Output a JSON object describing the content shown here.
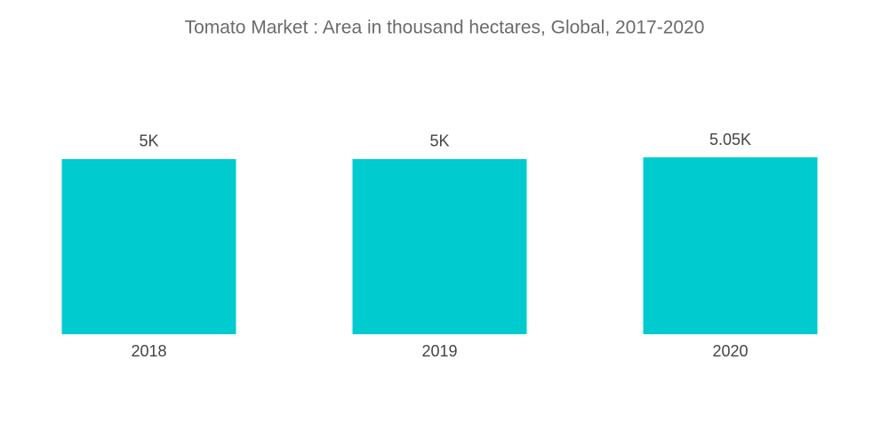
{
  "chart_data": {
    "type": "bar",
    "title": "Tomato Market : Area in thousand hectares, Global, 2017-2020",
    "categories": [
      "2018",
      "2019",
      "2020"
    ],
    "values": [
      5000,
      5000,
      5050
    ],
    "value_labels": [
      "5K",
      "5K",
      "5.05K"
    ],
    "color": "#00ccd0"
  }
}
